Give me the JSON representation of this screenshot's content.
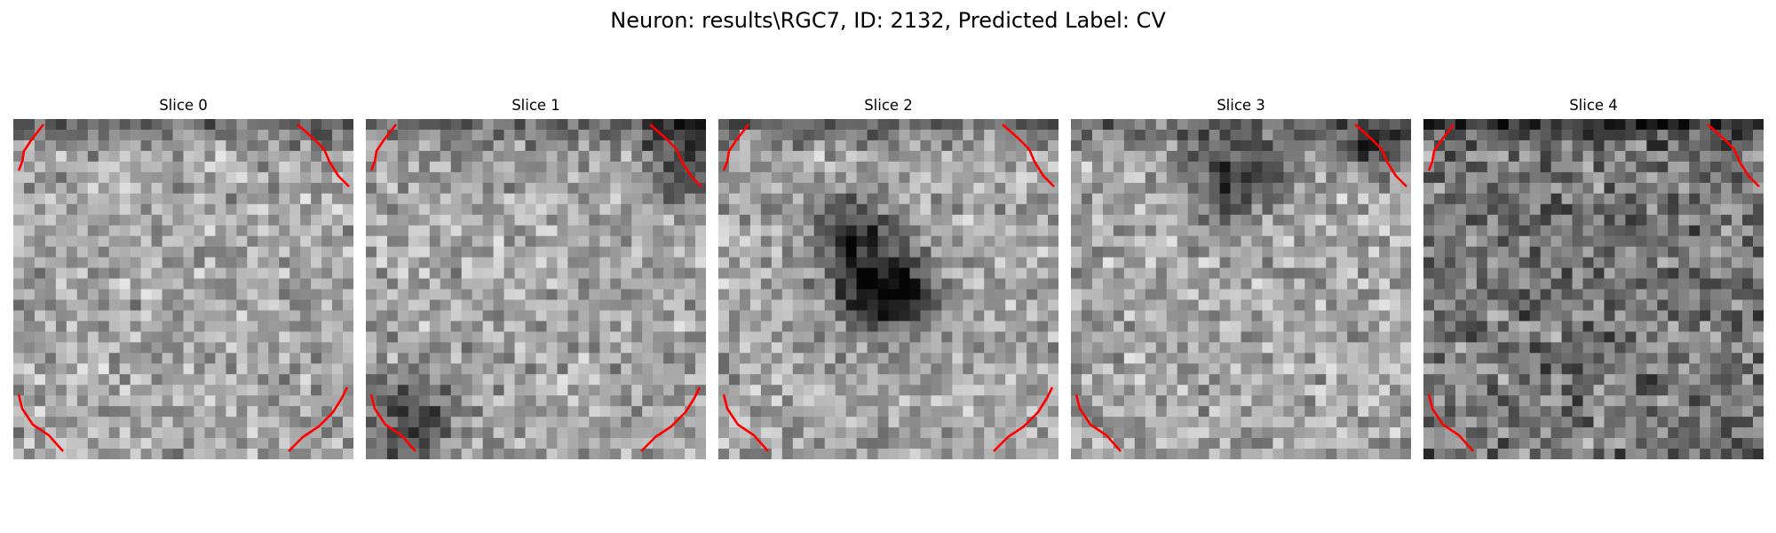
{
  "figure": {
    "title": "Neuron: results\\RGC7, ID: 2132, Predicted Label: CV",
    "grid_size": 32,
    "contour_color": "#ff0000",
    "colormap": "gray"
  },
  "panels": [
    {
      "title": "Slice 0",
      "pattern": "light-noise",
      "dark_spots": [],
      "contour_corners": [
        "top-left",
        "top-right",
        "bottom-left",
        "bottom-right"
      ],
      "seed": 11
    },
    {
      "title": "Slice 1",
      "pattern": "light-noise",
      "dark_spots": [
        [
          3,
          29,
          2.5
        ],
        [
          28,
          4,
          3
        ]
      ],
      "contour_corners": [
        "top-left",
        "top-right",
        "bottom-left",
        "bottom-right"
      ],
      "seed": 23
    },
    {
      "title": "Slice 2",
      "pattern": "light-noise",
      "dark_spots": [
        [
          11,
          13,
          3
        ],
        [
          16,
          14,
          2.5
        ],
        [
          16,
          17,
          2
        ]
      ],
      "contour_corners": [
        "top-left",
        "top-right",
        "bottom-left",
        "bottom-right"
      ],
      "seed": 37
    },
    {
      "title": "Slice 3",
      "pattern": "light-noise",
      "dark_spots": [
        [
          5,
          15,
          3
        ],
        [
          2,
          28,
          2
        ]
      ],
      "contour_corners": [
        "top-right",
        "bottom-left"
      ],
      "seed": 41
    },
    {
      "title": "Slice 4",
      "pattern": "dark-noise",
      "dark_spots": [],
      "contour_corners": [
        "top-left",
        "top-right",
        "bottom-left"
      ],
      "seed": 53
    }
  ]
}
